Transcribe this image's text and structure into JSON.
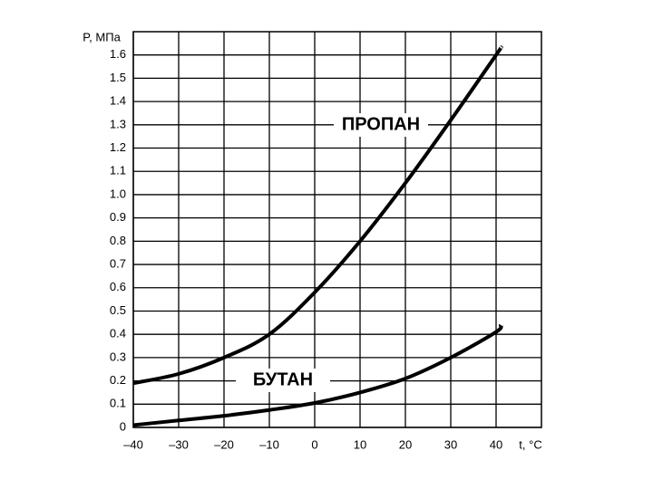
{
  "chart_data": {
    "type": "line",
    "x_label": "t, °C",
    "y_label": "P, МПа",
    "x": [
      -40,
      -30,
      -20,
      -10,
      0,
      10,
      20,
      30,
      40,
      41
    ],
    "series": [
      {
        "name": "ПРОПАН",
        "color": "#000000",
        "values": [
          0.19,
          0.23,
          0.3,
          0.4,
          0.58,
          0.8,
          1.05,
          1.32,
          1.6,
          1.63
        ]
      },
      {
        "name": "БУТАН",
        "color": "#000000",
        "values": [
          0.01,
          0.03,
          0.05,
          0.075,
          0.105,
          0.15,
          0.21,
          0.3,
          0.41,
          0.44
        ]
      }
    ],
    "xlim": [
      -40,
      50
    ],
    "xticks": [
      {
        "value": -40,
        "label": "–40"
      },
      {
        "value": -30,
        "label": "–30"
      },
      {
        "value": -20,
        "label": "–20"
      },
      {
        "value": -10,
        "label": "–10"
      },
      0,
      10,
      20,
      30,
      40
    ],
    "ylim": [
      0,
      1.7
    ],
    "yticks": [
      0,
      0.1,
      0.2,
      0.3,
      0.4,
      0.5,
      0.6,
      0.7,
      0.8,
      0.9,
      {
        "value": 1,
        "label": "1.0"
      },
      1.1,
      1.2,
      1.3,
      1.4,
      1.5,
      1.6
    ],
    "grid": true
  }
}
